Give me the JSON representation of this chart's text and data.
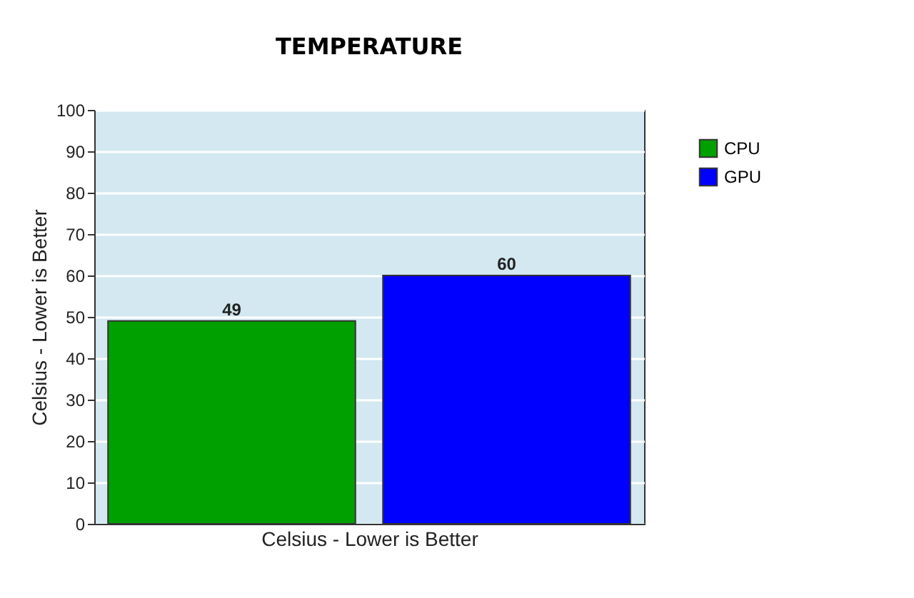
{
  "chart_data": {
    "type": "bar",
    "title": "TEMPERATURE",
    "xlabel": "Celsius - Lower is Better",
    "ylabel": "Celsius - Lower is Better",
    "categories": [
      null
    ],
    "series": [
      {
        "name": "CPU",
        "color": "#00a000",
        "values": [
          49
        ]
      },
      {
        "name": "GPU",
        "color": "#0000ff",
        "values": [
          60
        ]
      }
    ],
    "ylim": [
      0,
      100
    ],
    "yticks": [
      0,
      10,
      20,
      30,
      40,
      50,
      60,
      70,
      80,
      90,
      100
    ],
    "grid": "y",
    "legend": "right",
    "data_labels": true,
    "tick_labels": "y"
  }
}
